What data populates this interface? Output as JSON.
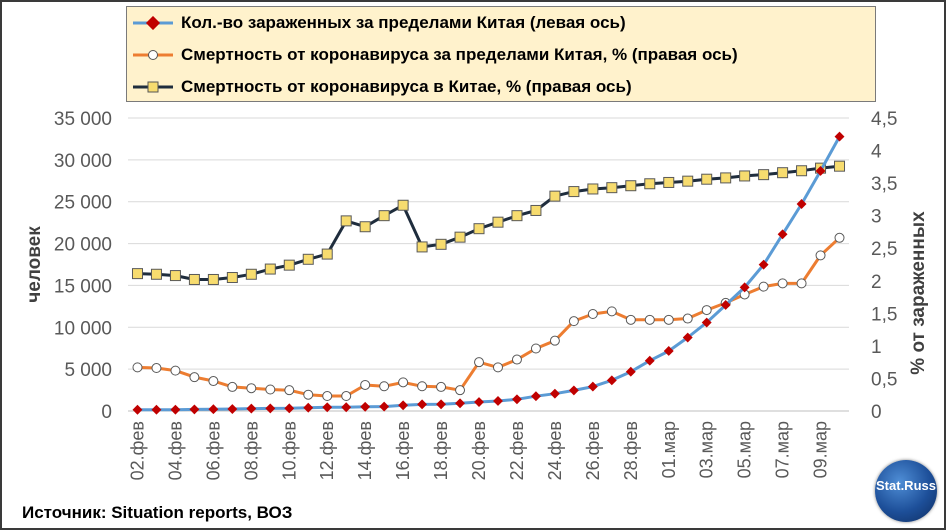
{
  "legend": [
    {
      "label": "Кол.-во зараженных за пределами Китая (левая ось)"
    },
    {
      "label": "Смертность  от коронавируса за пределами Китая, % (правая ось)"
    },
    {
      "label": "Смертность  от коронавируса в Китае, % (правая ось)"
    }
  ],
  "source": "Источник: Situation reports, ВОЗ",
  "logo": "Stat.Russ",
  "chart_data": {
    "type": "line",
    "x": [
      "02.фев",
      "03.фев",
      "04.фев",
      "05.фев",
      "06.фев",
      "07.фев",
      "08.фев",
      "09.фев",
      "10.фев",
      "11.фев",
      "12.фев",
      "13.фев",
      "14.фев",
      "15.фев",
      "16.фев",
      "17.фев",
      "18.фев",
      "19.фев",
      "20.фев",
      "21.фев",
      "22.фев",
      "23.фев",
      "24.фев",
      "25.фев",
      "26.фев",
      "27.фев",
      "28.фев",
      "29.фев",
      "01.мар",
      "02.мар",
      "03.мар",
      "04.мар",
      "05.мар",
      "06.мар",
      "07.мар",
      "08.мар",
      "09.мар",
      "10.мар"
    ],
    "x_tick_labels": [
      "02.фев",
      "04.фев",
      "06.фев",
      "08.фев",
      "10.фев",
      "12.фев",
      "14.фев",
      "16.фев",
      "18.фев",
      "20.фев",
      "22.фев",
      "24.фев",
      "26.фев",
      "28.фев",
      "01.мар",
      "03.мар",
      "05.мар",
      "07.мар",
      "09.мар"
    ],
    "ylabel": "человек",
    "y2label": "% от зараженных",
    "ylim": [
      0,
      35000
    ],
    "y_ticks": [
      "0",
      "5 000",
      "10 000",
      "15 000",
      "20 000",
      "25 000",
      "30 000",
      "35 000"
    ],
    "y2lim": [
      0,
      4.5
    ],
    "y2_ticks": [
      "0",
      "0,5",
      "1",
      "1,5",
      "2",
      "2,5",
      "3",
      "3,5",
      "4",
      "4,5"
    ],
    "grid": true,
    "legend_position": "top",
    "series": [
      {
        "name": "Кол.-во зараженных за пределами Китая (левая ось)",
        "axis": "left",
        "color": "#5b9bd5",
        "marker": "diamond",
        "marker_color": "#c00000",
        "values": [
          150,
          151,
          160,
          191,
          216,
          236,
          288,
          307,
          319,
          395,
          441,
          447,
          505,
          526,
          683,
          794,
          804,
          924,
          1073,
          1200,
          1402,
          1769,
          2069,
          2459,
          2918,
          3664,
          4691,
          6009,
          7169,
          8774,
          10566,
          12668,
          14768,
          17481,
          21110,
          24727,
          28674,
          32778
        ]
      },
      {
        "name": "Смертность  от коронавируса за пределами Китая, % (правая ось)",
        "axis": "right",
        "color": "#ed7d31",
        "marker": "circle",
        "marker_color": "#ffffff",
        "values": [
          0.67,
          0.66,
          0.62,
          0.52,
          0.46,
          0.37,
          0.35,
          0.33,
          0.32,
          0.25,
          0.23,
          0.23,
          0.4,
          0.38,
          0.44,
          0.38,
          0.37,
          0.32,
          0.75,
          0.67,
          0.79,
          0.96,
          1.08,
          1.38,
          1.49,
          1.53,
          1.4,
          1.4,
          1.4,
          1.42,
          1.55,
          1.66,
          1.79,
          1.91,
          1.96,
          1.96,
          2.39,
          2.66
        ]
      },
      {
        "name": "Смертность  от коронавируса в Китае, % (правая ось)",
        "axis": "right",
        "color": "#1f2d3d",
        "marker": "square",
        "marker_color": "#f7dc6f",
        "values": [
          2.11,
          2.1,
          2.08,
          2.02,
          2.02,
          2.05,
          2.1,
          2.18,
          2.24,
          2.33,
          2.41,
          2.92,
          2.83,
          3.0,
          3.16,
          2.52,
          2.56,
          2.67,
          2.8,
          2.9,
          3.0,
          3.08,
          3.3,
          3.37,
          3.41,
          3.43,
          3.46,
          3.49,
          3.51,
          3.53,
          3.56,
          3.58,
          3.61,
          3.63,
          3.66,
          3.69,
          3.73,
          3.76
        ]
      }
    ]
  }
}
